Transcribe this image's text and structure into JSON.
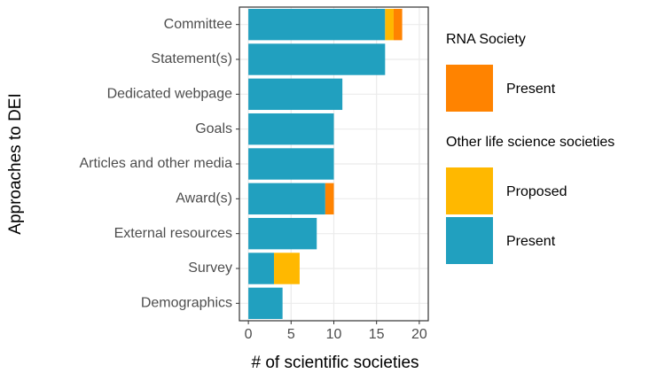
{
  "chart_data": {
    "type": "stacked-bar-horizontal",
    "x_label": "# of scientific societies",
    "y_label": "Approaches to DEI",
    "categories": [
      "Committee",
      "Statement(s)",
      "Dedicated webpage",
      "Goals",
      "Articles and other media",
      "Award(s)",
      "External resources",
      "Survey",
      "Demographics"
    ],
    "legend_groups": [
      {
        "title": "RNA Society",
        "series": [
          {
            "name": "Present",
            "color": "#ff8300",
            "values": [
              1,
              0,
              0,
              0,
              0,
              1,
              0,
              0,
              0
            ]
          }
        ]
      },
      {
        "title": "Other life science societies",
        "series": [
          {
            "name": "Proposed",
            "color": "#ffb800",
            "values": [
              1,
              0,
              0,
              0,
              0,
              0,
              0,
              3,
              0
            ]
          },
          {
            "name": "Present",
            "color": "#21a0bf",
            "values": [
              16,
              16,
              11,
              10,
              10,
              9,
              8,
              3,
              4
            ]
          }
        ]
      }
    ],
    "xlim": [
      -1.05,
      21.05
    ],
    "xticks": [
      0,
      5,
      10,
      15,
      20
    ],
    "grid": true
  }
}
